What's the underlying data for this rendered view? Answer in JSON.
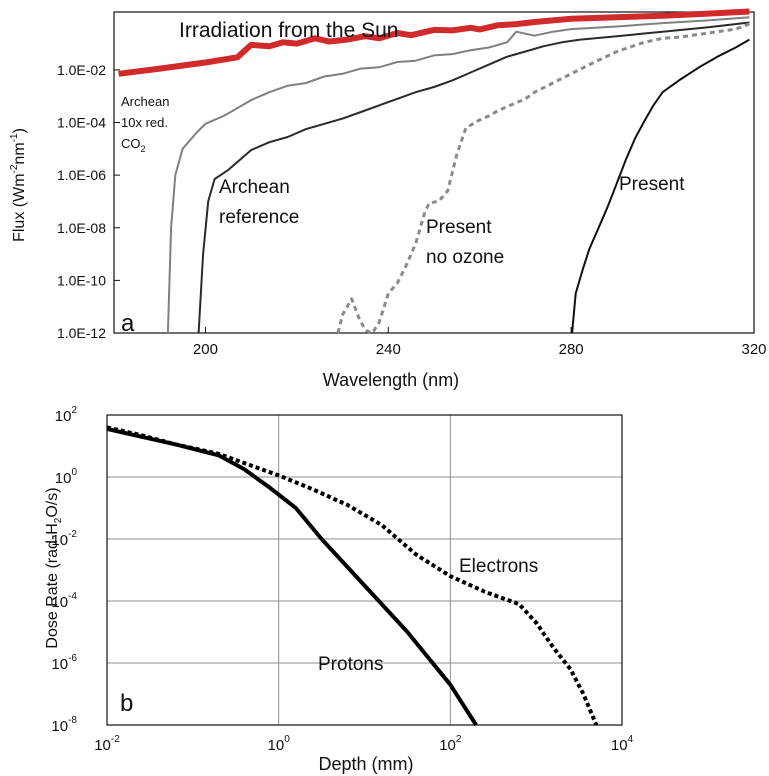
{
  "chart_data": [
    {
      "panel": "a",
      "panel_label": "a",
      "type": "line",
      "xlabel": "Wavelength (nm)",
      "ylabel_main": "Flux (Wm",
      "ylabel_sup1": "-2",
      "ylabel_mid": "nm",
      "ylabel_sup2": "-1",
      "ylabel_end": ")",
      "xlim": [
        180,
        320
      ],
      "ylim_log10": [
        -12,
        0.2
      ],
      "y_scale": "log",
      "grid": false,
      "x_ticks": [
        200,
        240,
        280,
        320
      ],
      "x_tick_labels": [
        "200",
        "240",
        "280",
        "320"
      ],
      "y_ticks_log10": [
        -2,
        -4,
        -6,
        -8,
        -10,
        -12
      ],
      "y_tick_labels": [
        "1.0E-02",
        "1.0E-04",
        "1.0E-06",
        "1.0E-08",
        "1.0E-10",
        "1.0E-12"
      ],
      "series": [
        {
          "key": "sun",
          "label": "Irradiation from the Sun",
          "color": "#d12a2a",
          "style": "solid-thick",
          "points": [
            [
              181,
              -2.15
            ],
            [
              190,
              -1.95
            ],
            [
              200,
              -1.72
            ],
            [
              207,
              -1.52
            ],
            [
              210,
              -1.05
            ],
            [
              214,
              -1.1
            ],
            [
              217,
              -0.95
            ],
            [
              220,
              -1.0
            ],
            [
              224,
              -0.8
            ],
            [
              227,
              -0.92
            ],
            [
              231,
              -0.85
            ],
            [
              235,
              -0.72
            ],
            [
              238,
              -0.8
            ],
            [
              242,
              -0.6
            ],
            [
              245,
              -0.68
            ],
            [
              250,
              -0.48
            ],
            [
              254,
              -0.5
            ],
            [
              258,
              -0.4
            ],
            [
              260,
              -0.46
            ],
            [
              264,
              -0.3
            ],
            [
              268,
              -0.26
            ],
            [
              272,
              -0.18
            ],
            [
              276,
              -0.12
            ],
            [
              280,
              -0.06
            ],
            [
              290,
              0.0
            ],
            [
              300,
              0.06
            ],
            [
              310,
              0.14
            ],
            [
              319,
              0.22
            ]
          ]
        },
        {
          "key": "archean_10x",
          "label_lines": [
            "Archean",
            "10x red."
          ],
          "label_co": "CO",
          "label_sub": "2",
          "color": "#808080",
          "style": "solid",
          "points": [
            [
              191.8,
              -12
            ],
            [
              192.5,
              -8
            ],
            [
              193.4,
              -6
            ],
            [
              195,
              -5
            ],
            [
              198,
              -4.4
            ],
            [
              200,
              -4.05
            ],
            [
              204,
              -3.75
            ],
            [
              206,
              -3.55
            ],
            [
              210,
              -3.15
            ],
            [
              214,
              -2.85
            ],
            [
              218,
              -2.6
            ],
            [
              222,
              -2.5
            ],
            [
              226,
              -2.25
            ],
            [
              230,
              -2.15
            ],
            [
              234,
              -1.95
            ],
            [
              238,
              -1.9
            ],
            [
              242,
              -1.7
            ],
            [
              246,
              -1.65
            ],
            [
              250,
              -1.45
            ],
            [
              254,
              -1.4
            ],
            [
              258,
              -1.25
            ],
            [
              262,
              -1.15
            ],
            [
              266,
              -0.95
            ],
            [
              268,
              -0.55
            ],
            [
              272,
              -0.7
            ],
            [
              276,
              -0.55
            ],
            [
              280,
              -0.45
            ],
            [
              290,
              -0.35
            ],
            [
              300,
              -0.22
            ],
            [
              310,
              -0.12
            ],
            [
              319,
              0.0
            ]
          ]
        },
        {
          "key": "archean_ref",
          "label_lines": [
            "Archean",
            "reference"
          ],
          "color": "#2a2a2a",
          "style": "solid",
          "points": [
            [
              198.5,
              -12
            ],
            [
              199.5,
              -9
            ],
            [
              200.6,
              -7
            ],
            [
              202,
              -6.15
            ],
            [
              205,
              -5.8
            ],
            [
              207,
              -5.5
            ],
            [
              210,
              -5.05
            ],
            [
              214,
              -4.75
            ],
            [
              218,
              -4.55
            ],
            [
              222,
              -4.25
            ],
            [
              226,
              -4.05
            ],
            [
              230,
              -3.85
            ],
            [
              234,
              -3.6
            ],
            [
              238,
              -3.35
            ],
            [
              242,
              -3.1
            ],
            [
              246,
              -2.85
            ],
            [
              250,
              -2.65
            ],
            [
              254,
              -2.4
            ],
            [
              258,
              -2.1
            ],
            [
              262,
              -1.8
            ],
            [
              266,
              -1.5
            ],
            [
              270,
              -1.3
            ],
            [
              274,
              -1.1
            ],
            [
              278,
              -0.95
            ],
            [
              282,
              -0.85
            ],
            [
              290,
              -0.72
            ],
            [
              300,
              -0.55
            ],
            [
              310,
              -0.38
            ],
            [
              319,
              -0.2
            ]
          ]
        },
        {
          "key": "present_no_ozone",
          "label_lines": [
            "Present",
            "no ozone"
          ],
          "color": "#8a8a8a",
          "style": "dashed",
          "points": [
            [
              229,
              -12
            ],
            [
              230,
              -11.3
            ],
            [
              232,
              -10.7
            ],
            [
              233.5,
              -11.4
            ],
            [
              235,
              -11.9
            ],
            [
              236.5,
              -12
            ],
            [
              238,
              -11.6
            ],
            [
              240,
              -10.5
            ],
            [
              242,
              -10.1
            ],
            [
              244,
              -9.4
            ],
            [
              246,
              -8.6
            ],
            [
              248,
              -7.4
            ],
            [
              249,
              -7.05
            ],
            [
              251,
              -7.0
            ],
            [
              253,
              -6.6
            ],
            [
              255,
              -5.2
            ],
            [
              257,
              -4.2
            ],
            [
              260,
              -3.9
            ],
            [
              262,
              -3.75
            ],
            [
              264,
              -3.55
            ],
            [
              266,
              -3.4
            ],
            [
              270,
              -3.1
            ],
            [
              272,
              -2.85
            ],
            [
              276,
              -2.5
            ],
            [
              280,
              -2.15
            ],
            [
              284,
              -1.8
            ],
            [
              290,
              -1.3
            ],
            [
              296,
              -0.95
            ],
            [
              300,
              -0.8
            ],
            [
              304,
              -0.75
            ],
            [
              310,
              -0.6
            ],
            [
              316,
              -0.45
            ],
            [
              319,
              -0.25
            ]
          ]
        },
        {
          "key": "present",
          "label": "Present",
          "color": "#111111",
          "style": "solid",
          "points": [
            [
              280.2,
              -12
            ],
            [
              281,
              -10.5
            ],
            [
              282.5,
              -9.6
            ],
            [
              284,
              -8.8
            ],
            [
              286,
              -8.0
            ],
            [
              288,
              -7.2
            ],
            [
              290,
              -6.3
            ],
            [
              292,
              -5.4
            ],
            [
              294,
              -4.6
            ],
            [
              296,
              -3.95
            ],
            [
              298,
              -3.35
            ],
            [
              300,
              -2.85
            ],
            [
              304,
              -2.35
            ],
            [
              308,
              -1.9
            ],
            [
              312,
              -1.5
            ],
            [
              316,
              -1.15
            ],
            [
              319,
              -0.85
            ]
          ]
        }
      ]
    },
    {
      "panel": "b",
      "panel_label": "b",
      "type": "line",
      "xlabel": "Depth (mm)",
      "ylabel_main": "Dose Rate (rad-H",
      "ylabel_sub": "2",
      "ylabel_end": "O/s)",
      "x_scale": "log",
      "y_scale": "log",
      "xlim_log10": [
        -2,
        4
      ],
      "ylim_log10": [
        -8,
        2
      ],
      "grid": true,
      "x_ticks_log10": [
        -2,
        0,
        2,
        4
      ],
      "x_tick_bases": [
        "10",
        "10",
        "10",
        "10"
      ],
      "x_tick_exps": [
        "-2",
        "0",
        "2",
        "4"
      ],
      "y_ticks_log10": [
        2,
        0,
        -2,
        -4,
        -6,
        -8
      ],
      "y_tick_bases": [
        "10",
        "10",
        "10",
        "10",
        "10",
        "10"
      ],
      "y_tick_exps": [
        "2",
        "0",
        "-2",
        "-4",
        "-6",
        "-8"
      ],
      "series": [
        {
          "key": "protons",
          "label": "Protons",
          "color": "#000000",
          "style": "solid-thick",
          "points": [
            [
              -2,
              1.55
            ],
            [
              -1.6,
              1.3
            ],
            [
              -1.2,
              1.05
            ],
            [
              -0.7,
              0.7
            ],
            [
              -0.4,
              0.25
            ],
            [
              -0.1,
              -0.35
            ],
            [
              0.2,
              -1.0
            ],
            [
              0.5,
              -2.0
            ],
            [
              1.0,
              -3.5
            ],
            [
              1.5,
              -5.0
            ],
            [
              2.0,
              -6.7
            ],
            [
              2.3,
              -8.0
            ]
          ]
        },
        {
          "key": "electrons",
          "label": "Electrons",
          "color": "#000000",
          "style": "dotted-thick",
          "points": [
            [
              -2,
              1.6
            ],
            [
              -1.6,
              1.35
            ],
            [
              -1.2,
              1.05
            ],
            [
              -0.7,
              0.75
            ],
            [
              -0.4,
              0.45
            ],
            [
              0,
              0.05
            ],
            [
              0.4,
              -0.4
            ],
            [
              0.8,
              -0.9
            ],
            [
              1.2,
              -1.55
            ],
            [
              1.6,
              -2.5
            ],
            [
              2.0,
              -3.2
            ],
            [
              2.4,
              -3.7
            ],
            [
              2.8,
              -4.1
            ],
            [
              3.0,
              -4.7
            ],
            [
              3.2,
              -5.5
            ],
            [
              3.4,
              -6.2
            ],
            [
              3.55,
              -7.0
            ],
            [
              3.7,
              -8.0
            ]
          ]
        }
      ]
    }
  ]
}
